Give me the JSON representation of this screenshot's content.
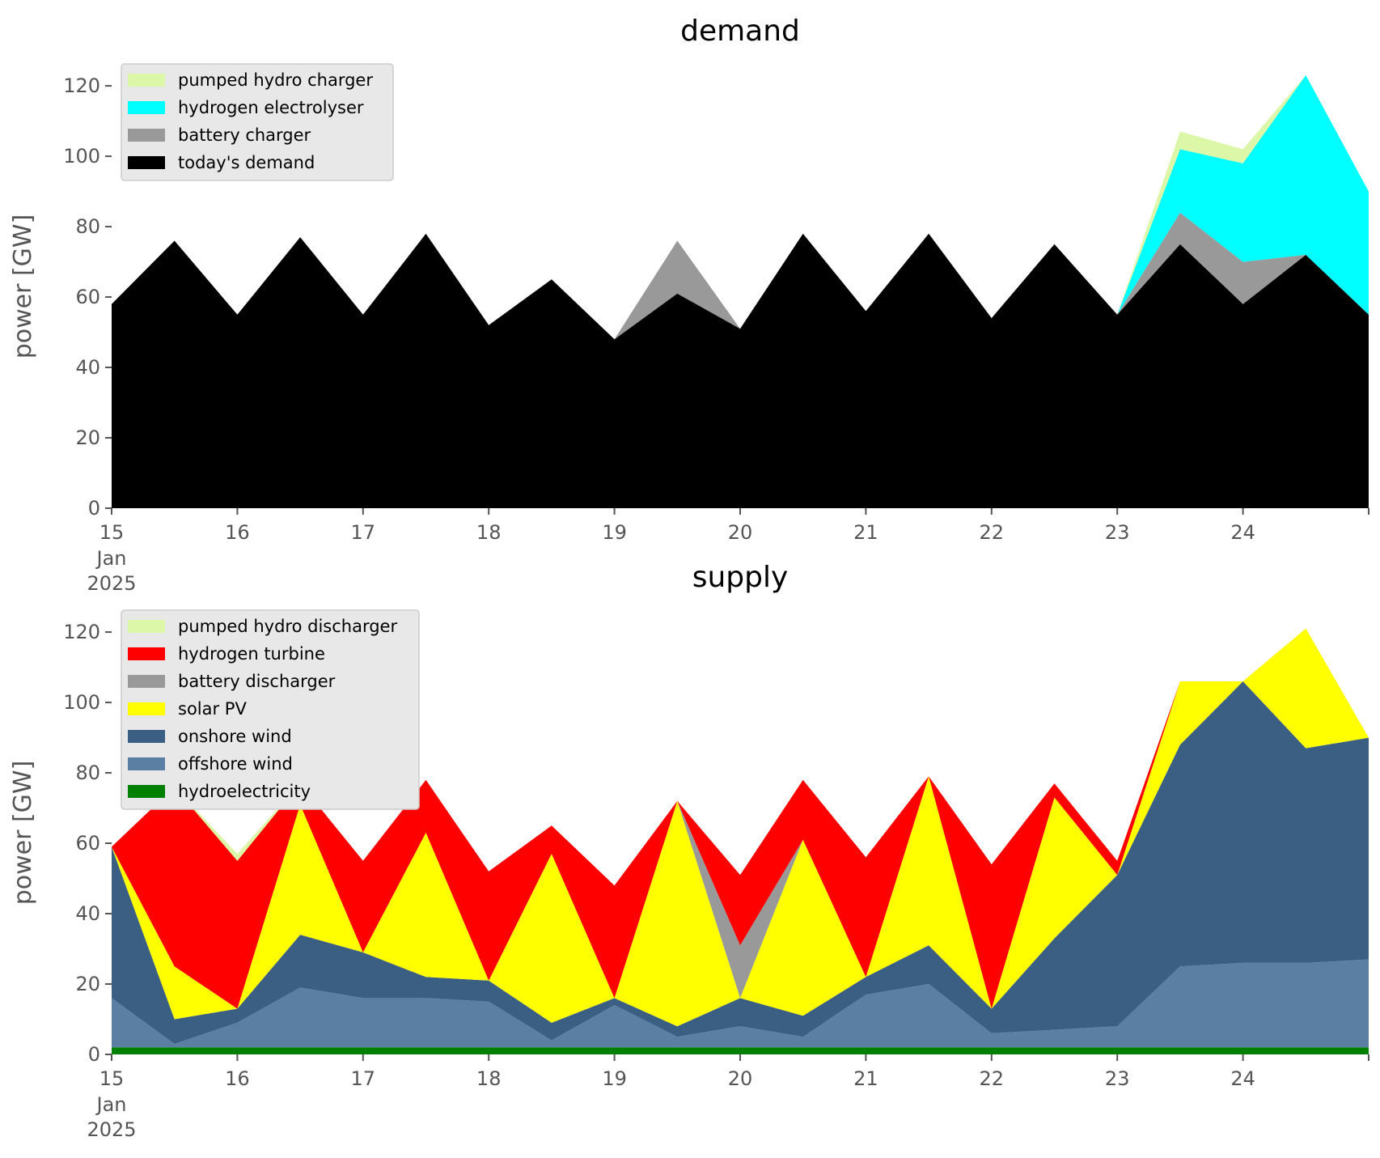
{
  "chart_data": [
    {
      "type": "area",
      "stacked": true,
      "title": "demand",
      "ylabel": "power [GW]",
      "xlabel": "",
      "ylim": [
        0,
        126
      ],
      "xlim": [
        "2025-01-15 00:00",
        "2025-01-25 00:00"
      ],
      "yticks": [
        0,
        20,
        40,
        60,
        80,
        100,
        120
      ],
      "xticks": [
        {
          "date": "2025-01-15",
          "label": "15",
          "sublabels": [
            "Jan",
            "2025"
          ]
        },
        {
          "date": "2025-01-16",
          "label": "16"
        },
        {
          "date": "2025-01-17",
          "label": "17"
        },
        {
          "date": "2025-01-18",
          "label": "18"
        },
        {
          "date": "2025-01-19",
          "label": "19"
        },
        {
          "date": "2025-01-20",
          "label": "20"
        },
        {
          "date": "2025-01-21",
          "label": "21"
        },
        {
          "date": "2025-01-22",
          "label": "22"
        },
        {
          "date": "2025-01-23",
          "label": "23"
        },
        {
          "date": "2025-01-24",
          "label": "24"
        }
      ],
      "legend_position": "top-left",
      "legend_order": [
        "pumped hydro charger",
        "hydrogen electrolyser",
        "battery charger",
        "today's demand"
      ],
      "grid": false,
      "x": [
        "2025-01-15 00:00",
        "2025-01-15 12:00",
        "2025-01-16 00:00",
        "2025-01-16 12:00",
        "2025-01-17 00:00",
        "2025-01-17 12:00",
        "2025-01-18 00:00",
        "2025-01-18 12:00",
        "2025-01-19 00:00",
        "2025-01-19 12:00",
        "2025-01-20 00:00",
        "2025-01-20 12:00",
        "2025-01-21 00:00",
        "2025-01-21 12:00",
        "2025-01-22 00:00",
        "2025-01-22 12:00",
        "2025-01-23 00:00",
        "2025-01-23 12:00",
        "2025-01-24 00:00",
        "2025-01-24 12:00",
        "2025-01-25 00:00"
      ],
      "series": [
        {
          "name": "today's demand",
          "color": "#000000",
          "values": [
            58,
            76,
            55,
            77,
            55,
            78,
            52,
            65,
            48,
            61,
            51,
            78,
            56,
            78,
            54,
            75,
            55,
            75,
            58,
            72,
            55
          ]
        },
        {
          "name": "battery charger",
          "color": "#999999",
          "values": [
            0,
            0,
            0,
            0,
            0,
            0,
            0,
            0,
            0,
            15,
            0,
            0,
            0,
            0,
            0,
            0,
            0,
            9,
            12,
            0,
            0
          ]
        },
        {
          "name": "hydrogen electrolyser",
          "color": "#00ffff",
          "values": [
            0,
            0,
            0,
            0,
            0,
            0,
            0,
            0,
            0,
            0,
            0,
            0,
            0,
            0,
            0,
            0,
            0,
            18,
            28,
            51,
            35
          ]
        },
        {
          "name": "pumped hydro charger",
          "color": "#ddf7a8",
          "values": [
            0,
            0,
            0,
            0,
            0,
            0,
            0,
            0,
            0,
            0,
            0,
            0,
            0,
            0,
            0,
            0,
            0,
            5,
            4,
            0,
            0
          ]
        }
      ]
    },
    {
      "type": "area",
      "stacked": true,
      "title": "supply",
      "ylabel": "power [GW]",
      "xlabel": "",
      "ylim": [
        0,
        126
      ],
      "xlim": [
        "2025-01-15 00:00",
        "2025-01-25 00:00"
      ],
      "yticks": [
        0,
        20,
        40,
        60,
        80,
        100,
        120
      ],
      "xticks": [
        {
          "date": "2025-01-15",
          "label": "15",
          "sublabels": [
            "Jan",
            "2025"
          ]
        },
        {
          "date": "2025-01-16",
          "label": "16"
        },
        {
          "date": "2025-01-17",
          "label": "17"
        },
        {
          "date": "2025-01-18",
          "label": "18"
        },
        {
          "date": "2025-01-19",
          "label": "19"
        },
        {
          "date": "2025-01-20",
          "label": "20"
        },
        {
          "date": "2025-01-21",
          "label": "21"
        },
        {
          "date": "2025-01-22",
          "label": "22"
        },
        {
          "date": "2025-01-23",
          "label": "23"
        },
        {
          "date": "2025-01-24",
          "label": "24"
        }
      ],
      "legend_position": "top-left",
      "legend_order": [
        "pumped hydro discharger",
        "hydrogen turbine",
        "battery discharger",
        "solar PV",
        "onshore wind",
        "offshore wind",
        "hydroelectricity"
      ],
      "grid": false,
      "x": [
        "2025-01-15 00:00",
        "2025-01-15 12:00",
        "2025-01-16 00:00",
        "2025-01-16 12:00",
        "2025-01-17 00:00",
        "2025-01-17 12:00",
        "2025-01-18 00:00",
        "2025-01-18 12:00",
        "2025-01-19 00:00",
        "2025-01-19 12:00",
        "2025-01-20 00:00",
        "2025-01-20 12:00",
        "2025-01-21 00:00",
        "2025-01-21 12:00",
        "2025-01-22 00:00",
        "2025-01-22 12:00",
        "2025-01-23 00:00",
        "2025-01-23 12:00",
        "2025-01-24 00:00",
        "2025-01-24 12:00",
        "2025-01-25 00:00"
      ],
      "series": [
        {
          "name": "hydroelectricity",
          "color": "#008000",
          "values": [
            2,
            2,
            2,
            2,
            2,
            2,
            2,
            2,
            2,
            2,
            2,
            2,
            2,
            2,
            2,
            2,
            2,
            2,
            2,
            2,
            2
          ]
        },
        {
          "name": "offshore wind",
          "color": "#5b7fa3",
          "values": [
            14,
            1,
            7,
            17,
            14,
            14,
            13,
            2,
            12,
            3,
            6,
            3,
            15,
            18,
            4,
            5,
            6,
            23,
            24,
            24,
            25
          ]
        },
        {
          "name": "onshore wind",
          "color": "#3b5f82",
          "values": [
            43,
            7,
            4,
            15,
            13,
            6,
            6,
            5,
            2,
            3,
            8,
            6,
            5,
            11,
            7,
            26,
            43,
            63,
            80,
            61,
            63
          ]
        },
        {
          "name": "solar PV",
          "color": "#ffff00",
          "values": [
            0,
            15,
            0,
            37,
            0,
            41,
            0,
            48,
            0,
            64,
            0,
            50,
            0,
            48,
            0,
            40,
            0,
            18,
            0,
            34,
            0
          ]
        },
        {
          "name": "battery discharger",
          "color": "#999999",
          "values": [
            0,
            0,
            0,
            0,
            0,
            0,
            0,
            0,
            0,
            0,
            15,
            0,
            0,
            0,
            0,
            0,
            0,
            0,
            0,
            0,
            0
          ]
        },
        {
          "name": "hydrogen turbine",
          "color": "#ff0000",
          "values": [
            0,
            51,
            42,
            6,
            26,
            15,
            31,
            8,
            32,
            0,
            20,
            17,
            34,
            0,
            41,
            4,
            4,
            0,
            0,
            0,
            0
          ]
        },
        {
          "name": "pumped hydro discharger",
          "color": "#ddf7a8",
          "values": [
            0,
            0,
            2,
            0,
            0,
            0,
            0,
            0,
            0,
            0,
            0,
            0,
            0,
            0,
            0,
            0,
            0,
            0,
            0,
            0,
            0
          ]
        }
      ]
    }
  ]
}
